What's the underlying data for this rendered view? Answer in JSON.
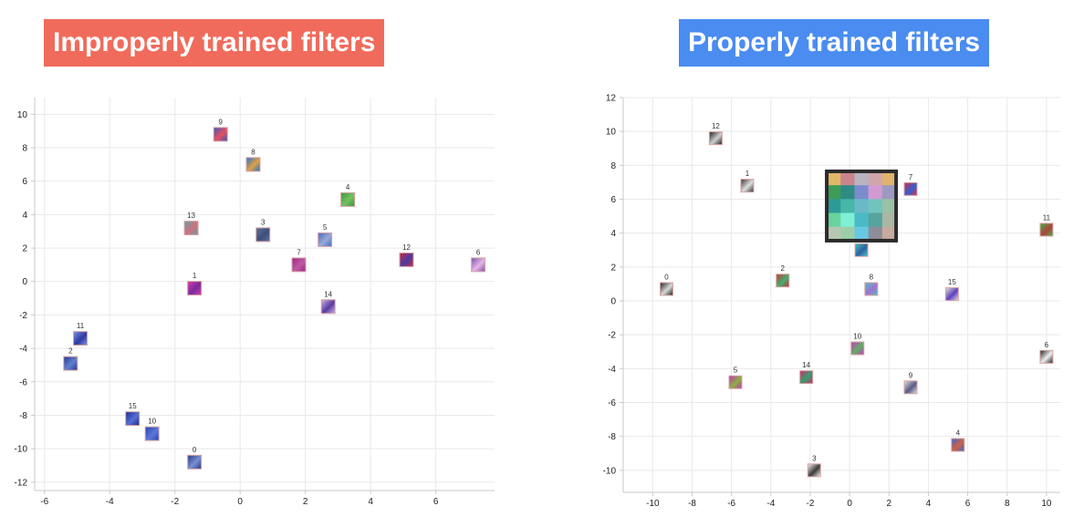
{
  "colors": {
    "left_title_bg": "#f06b5b",
    "right_title_bg": "#4a8cf0",
    "grid": "#e9e9e9",
    "axis": "#c9c9c9",
    "label": "#333333",
    "zoom_border": "#2b2b2b"
  },
  "panels": {
    "left": {
      "title": "Improperly trained filters"
    },
    "right": {
      "title": "Properly trained filters"
    }
  },
  "chart_data": [
    {
      "type": "scatter",
      "title": "Improperly trained filters",
      "xlabel": "",
      "ylabel": "",
      "xlim": [
        -6.3,
        7.8
      ],
      "ylim": [
        -12.5,
        11
      ],
      "xticks": [
        -6,
        -4,
        -2,
        0,
        2,
        4,
        6
      ],
      "yticks": [
        10,
        8,
        6,
        4,
        2,
        0,
        -2,
        -4,
        -6,
        -8,
        -10,
        -12
      ],
      "grid": true,
      "marker": "thumbnail image tiles",
      "points": [
        {
          "label": "0",
          "x": -1.4,
          "y": -10.8,
          "c": [
            "#2e3f8f",
            "#7a8fd0"
          ]
        },
        {
          "label": "1",
          "x": -1.4,
          "y": -0.4,
          "c": [
            "#d23bb0",
            "#7a2a9a"
          ]
        },
        {
          "label": "2",
          "x": -5.2,
          "y": -4.9,
          "c": [
            "#2a3a9a",
            "#6080d0"
          ]
        },
        {
          "label": "3",
          "x": 0.7,
          "y": 2.8,
          "c": [
            "#5b6f96",
            "#3d4f7c"
          ]
        },
        {
          "label": "4",
          "x": 3.3,
          "y": 4.9,
          "c": [
            "#3c9b3c",
            "#74c164"
          ]
        },
        {
          "label": "5",
          "x": 2.6,
          "y": 2.5,
          "c": [
            "#4b6dbf",
            "#9aa9d6"
          ]
        },
        {
          "label": "6",
          "x": 7.3,
          "y": 1.0,
          "c": [
            "#7a58b0",
            "#e6b6e6"
          ]
        },
        {
          "label": "7",
          "x": 1.8,
          "y": 1.0,
          "c": [
            "#9a2a8f",
            "#c05aa0"
          ]
        },
        {
          "label": "8",
          "x": 0.4,
          "y": 7.0,
          "c": [
            "#2a73c8",
            "#e0a040"
          ]
        },
        {
          "label": "9",
          "x": -0.6,
          "y": 8.8,
          "c": [
            "#3a57b8",
            "#e85060"
          ]
        },
        {
          "label": "10",
          "x": -2.7,
          "y": -9.1,
          "c": [
            "#2a45b5",
            "#5a78d8"
          ]
        },
        {
          "label": "11",
          "x": -4.9,
          "y": -3.4,
          "c": [
            "#7a8fe0",
            "#2c3aa0"
          ]
        },
        {
          "label": "12",
          "x": 5.1,
          "y": 1.3,
          "c": [
            "#c02a4a",
            "#4a3aa0"
          ]
        },
        {
          "label": "13",
          "x": -1.5,
          "y": 3.2,
          "c": [
            "#6aa0a0",
            "#d07080"
          ]
        },
        {
          "label": "14",
          "x": 2.7,
          "y": -1.5,
          "c": [
            "#c4b0e0",
            "#5a3aa0"
          ]
        },
        {
          "label": "15",
          "x": -3.3,
          "y": -8.2,
          "c": [
            "#1f2f9a",
            "#5570d0"
          ]
        }
      ]
    },
    {
      "type": "scatter",
      "title": "Properly trained filters",
      "xlabel": "",
      "ylabel": "",
      "xlim": [
        -11.5,
        10.7
      ],
      "ylim": [
        -11.3,
        12
      ],
      "xticks": [
        -10,
        -8,
        -6,
        -4,
        -2,
        0,
        2,
        4,
        6,
        8,
        10
      ],
      "yticks": [
        12,
        10,
        8,
        6,
        4,
        2,
        0,
        -2,
        -4,
        -6,
        -8,
        -10
      ],
      "grid": true,
      "marker": "thumbnail image tiles",
      "points": [
        {
          "label": "0",
          "x": -9.3,
          "y": 0.7,
          "c": [
            "#2a2a2a",
            "#d8d8d8"
          ]
        },
        {
          "label": "1",
          "x": -5.2,
          "y": 6.8,
          "c": [
            "#3a3a3a",
            "#e0e0e0"
          ]
        },
        {
          "label": "2",
          "x": -3.4,
          "y": 1.2,
          "c": [
            "#c03a3a",
            "#40b070"
          ]
        },
        {
          "label": "3",
          "x": -1.8,
          "y": -10.0,
          "c": [
            "#e8e8e8",
            "#3a3a3a"
          ]
        },
        {
          "label": "5",
          "x": -5.8,
          "y": -4.8,
          "c": [
            "#c03ab0",
            "#8ab040"
          ]
        },
        {
          "label": "6",
          "x": 10.0,
          "y": -3.3,
          "c": [
            "#2a2a2a",
            "#f0f0f0"
          ]
        },
        {
          "label": "7",
          "x": 3.1,
          "y": 6.6,
          "c": [
            "#d03050",
            "#3060d0"
          ]
        },
        {
          "label": "8",
          "x": 1.1,
          "y": 0.7,
          "c": [
            "#50c0c0",
            "#a070d0"
          ]
        },
        {
          "label": "9",
          "x": 3.1,
          "y": -5.1,
          "c": [
            "#d8d8d8",
            "#5a5a8a"
          ]
        },
        {
          "label": "10",
          "x": 0.4,
          "y": -2.8,
          "c": [
            "#c040c0",
            "#60b060"
          ]
        },
        {
          "label": "11",
          "x": 10.0,
          "y": 4.2,
          "c": [
            "#40b040",
            "#b04040"
          ]
        },
        {
          "label": "12",
          "x": -6.8,
          "y": 9.6,
          "c": [
            "#2a2a2a",
            "#d0d0d0"
          ]
        },
        {
          "label": "14",
          "x": -2.2,
          "y": -4.5,
          "c": [
            "#d03070",
            "#30a070"
          ]
        },
        {
          "label": "15",
          "x": 5.2,
          "y": 0.4,
          "c": [
            "#d8d8d8",
            "#6040c0"
          ]
        },
        {
          "label": "",
          "x": 0.6,
          "y": 3.0,
          "c": [
            "#40c0c0",
            "#3060a0"
          ]
        },
        {
          "label": "4",
          "x": 5.5,
          "y": -8.5,
          "c": [
            "#3a6ad0",
            "#d06040"
          ]
        }
      ],
      "zoom_inset": {
        "center_x": 0.6,
        "center_y": 5.6,
        "grid": [
          [
            "#e3b768",
            "#c9848e",
            "#b9b3c2",
            "#d1a6aa",
            "#e0b26c"
          ],
          [
            "#3f9c58",
            "#2f8c84",
            "#7a8ccc",
            "#d39ad2",
            "#9c9ac0"
          ],
          [
            "#2c9b98",
            "#47b7a8",
            "#69b9c6",
            "#71c4bd",
            "#9cc1a5"
          ],
          [
            "#69d49e",
            "#7ff0d6",
            "#4bb9c6",
            "#57a39f",
            "#a9b7a3"
          ],
          [
            "#b7c7b2",
            "#9ccfa9",
            "#68c8e2",
            "#8d8e9a",
            "#c8ab9e"
          ]
        ]
      }
    }
  ]
}
